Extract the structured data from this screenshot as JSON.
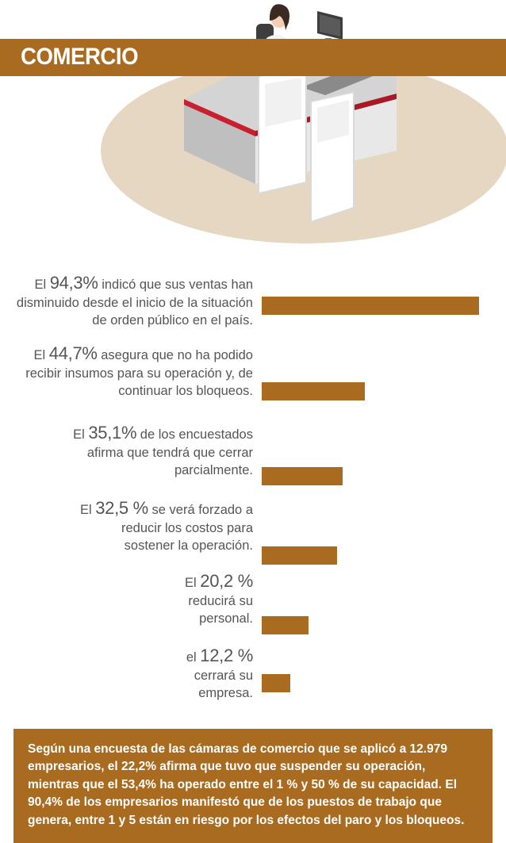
{
  "header": {
    "title": "COMERCIO"
  },
  "chart_data": {
    "type": "bar",
    "orientation": "horizontal",
    "title": "COMERCIO",
    "unit": "%",
    "xlim": [
      0,
      100
    ],
    "color": "#a86b20",
    "items": [
      {
        "prefix": "El ",
        "value_label": "94,3%",
        "line1_rest": " indicó que sus ventas han",
        "lines": [
          "disminuido desde el inicio de la situación",
          "de orden público en el país."
        ],
        "value": 94.3
      },
      {
        "prefix": "El ",
        "value_label": "44,7%",
        "line1_rest": " asegura que no ha podido",
        "lines": [
          "recibir insumos para su operación y, de",
          "continuar los bloqueos."
        ],
        "value": 44.7
      },
      {
        "prefix": "El ",
        "value_label": "35,1%",
        "line1_rest": " de los encuestados",
        "lines": [
          "afirma que tendrá que cerrar",
          "parcialmente."
        ],
        "value": 35.1
      },
      {
        "prefix": "El ",
        "value_label": "32,5 %",
        "line1_rest": " se verá forzado a",
        "lines": [
          "reducir los costos para",
          "sostener la operación."
        ],
        "value": 32.5
      },
      {
        "prefix": "El ",
        "value_label": "20,2 %",
        "line1_rest": "",
        "lines": [
          "reducirá su",
          "personal."
        ],
        "value": 20.2
      },
      {
        "prefix": "el ",
        "value_label": "12,2 %",
        "line1_rest": "",
        "lines": [
          "cerrará su",
          "empresa."
        ],
        "value": 12.2
      }
    ]
  },
  "footer": {
    "text": "Según una encuesta de las cámaras de comercio que se aplicó a 12.979 empresarios, el 22,2% afirma que tuvo que suspender su operación, mientras que el 53,4% ha operado entre el 1 % y 50 % de su capacidad. El 90,4% de los empresarios manifestó que de los puestos de trabajo que genera, entre 1 y 5 están en riesgo por los efectos del paro y los bloqueos."
  }
}
